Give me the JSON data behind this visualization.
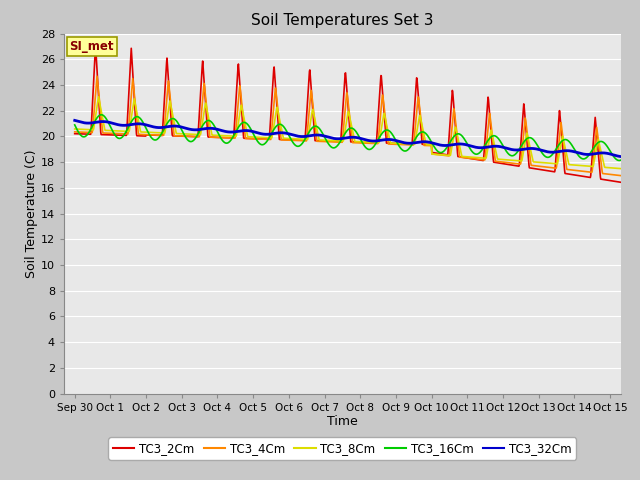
{
  "title": "Soil Temperatures Set 3",
  "xlabel": "Time",
  "ylabel": "Soil Temperature (C)",
  "ylim": [
    0,
    28
  ],
  "annotation_text": "SI_met",
  "series": {
    "TC3_2Cm": {
      "color": "#dd0000",
      "lw": 1.2
    },
    "TC3_4Cm": {
      "color": "#ff8800",
      "lw": 1.2
    },
    "TC3_8Cm": {
      "color": "#dddd00",
      "lw": 1.2
    },
    "TC3_16Cm": {
      "color": "#00cc00",
      "lw": 1.2
    },
    "TC3_32Cm": {
      "color": "#0000cc",
      "lw": 2.0
    }
  },
  "xtick_labels": [
    "Sep 30",
    "Oct 1",
    "Oct 2",
    "Oct 3",
    "Oct 4",
    "Oct 5",
    "Oct 6",
    "Oct 7",
    "Oct 8",
    "Oct 9",
    "Oct 10",
    "Oct 11",
    "Oct 12",
    "Oct 13",
    "Oct 14",
    "Oct 15"
  ],
  "xtick_positions": [
    0,
    1,
    2,
    3,
    4,
    5,
    6,
    7,
    8,
    9,
    10,
    11,
    12,
    13,
    14,
    15
  ],
  "ytick_positions": [
    0,
    2,
    4,
    6,
    8,
    10,
    12,
    14,
    16,
    18,
    20,
    22,
    24,
    26,
    28
  ]
}
